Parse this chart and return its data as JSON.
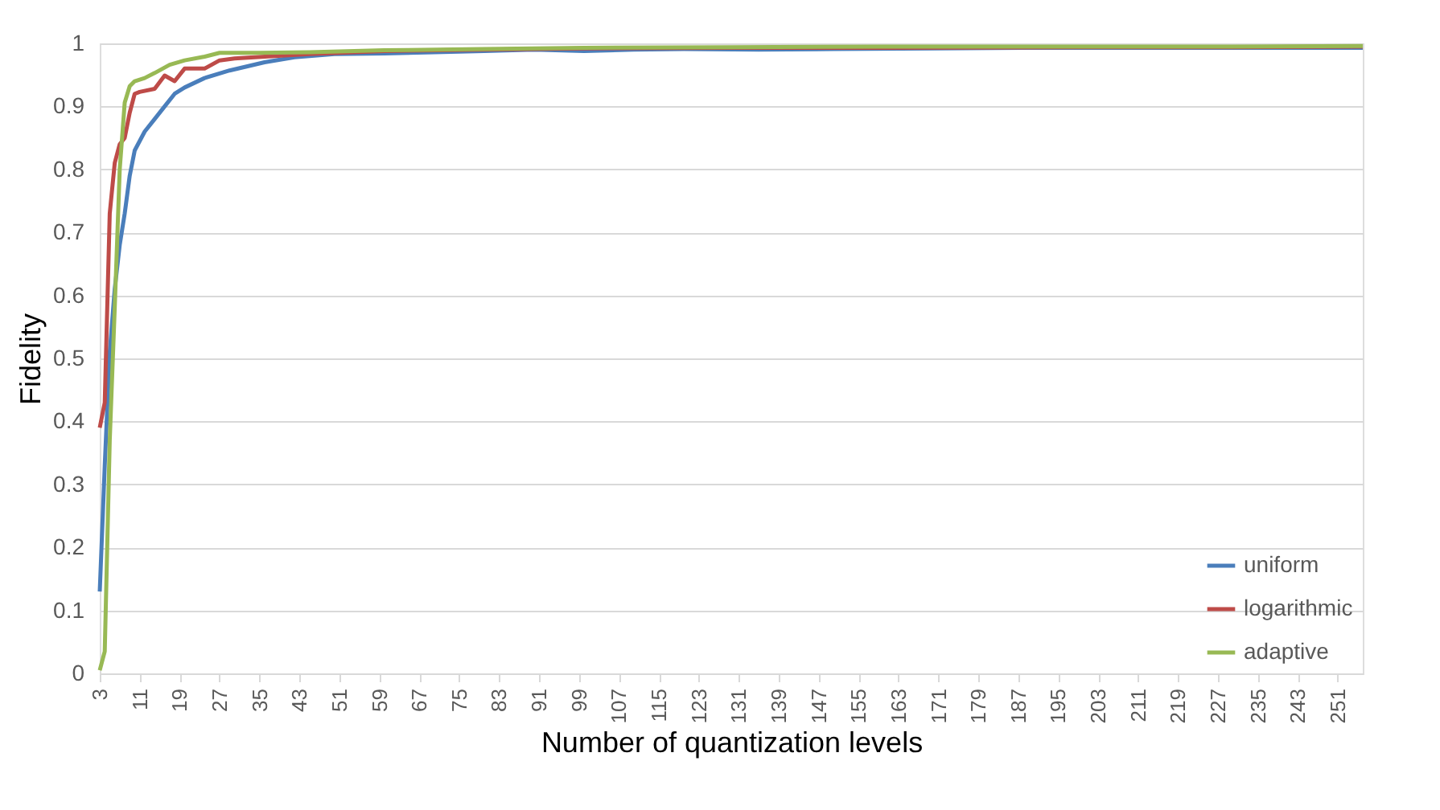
{
  "chart_data": {
    "type": "line",
    "xlabel": "Number of quantization levels",
    "ylabel": "Fidelity",
    "xlim": [
      3,
      256
    ],
    "xticks": [
      3,
      11,
      19,
      27,
      35,
      43,
      51,
      59,
      67,
      75,
      83,
      91,
      99,
      107,
      115,
      123,
      131,
      139,
      147,
      155,
      163,
      171,
      179,
      187,
      195,
      203,
      211,
      219,
      227,
      235,
      243,
      251
    ],
    "ylim": [
      0,
      1
    ],
    "yticks": [
      0,
      0.1,
      0.2,
      0.3,
      0.4,
      0.5,
      0.6,
      0.7,
      0.8,
      0.9,
      1
    ],
    "grid": "y",
    "legend": "bottom right",
    "marker": "none",
    "line_style": "solid",
    "series": [
      {
        "name": "uniform",
        "color": "#4a7ebb",
        "x": [
          3,
          4,
          5,
          6,
          7,
          8,
          9,
          10,
          12,
          14,
          16,
          18,
          20,
          24,
          29,
          36,
          42,
          50,
          60,
          70,
          80,
          90,
          100,
          110,
          120,
          135,
          150,
          170,
          190,
          210,
          230,
          256
        ],
        "values": [
          0.13,
          0.33,
          0.51,
          0.61,
          0.68,
          0.73,
          0.79,
          0.83,
          0.86,
          0.88,
          0.9,
          0.92,
          0.93,
          0.945,
          0.957,
          0.97,
          0.978,
          0.983,
          0.984,
          0.986,
          0.988,
          0.99,
          0.988,
          0.99,
          0.991,
          0.99,
          0.991,
          0.992,
          0.993,
          0.993,
          0.993,
          0.993
        ]
      },
      {
        "name": "logarithmic",
        "color": "#be4b48",
        "x": [
          3,
          4,
          5,
          6,
          7,
          8,
          9,
          10,
          11,
          14,
          16,
          18,
          20,
          24,
          27,
          30,
          36,
          45,
          60,
          80,
          100,
          130,
          160,
          200,
          230,
          256
        ],
        "values": [
          0.39,
          0.43,
          0.73,
          0.81,
          0.84,
          0.85,
          0.89,
          0.92,
          0.923,
          0.928,
          0.949,
          0.94,
          0.96,
          0.96,
          0.973,
          0.976,
          0.979,
          0.983,
          0.988,
          0.99,
          0.992,
          0.993,
          0.993,
          0.994,
          0.994,
          0.995
        ]
      },
      {
        "name": "adaptive",
        "color": "#98b954",
        "x": [
          3,
          4,
          5,
          6,
          7,
          8,
          9,
          10,
          12,
          14,
          17,
          20,
          24,
          27,
          35,
          45,
          60,
          80,
          100,
          130,
          160,
          200,
          230,
          256
        ],
        "values": [
          0.005,
          0.035,
          0.37,
          0.58,
          0.8,
          0.906,
          0.932,
          0.94,
          0.945,
          0.953,
          0.966,
          0.973,
          0.979,
          0.985,
          0.985,
          0.986,
          0.989,
          0.991,
          0.993,
          0.994,
          0.995,
          0.995,
          0.995,
          0.996
        ]
      }
    ]
  }
}
